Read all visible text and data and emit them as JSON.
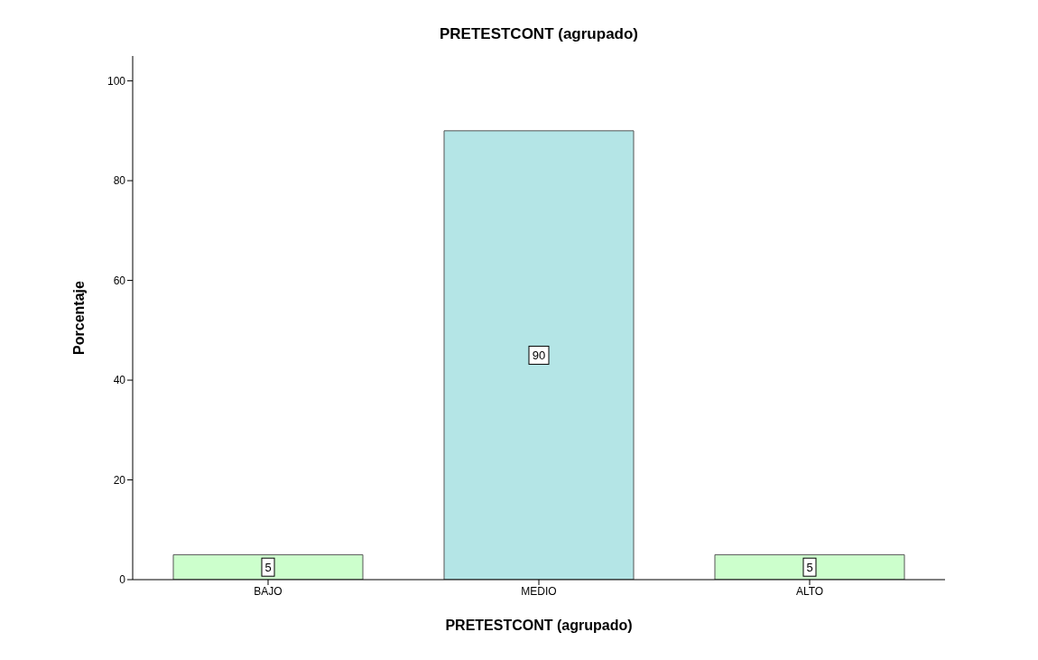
{
  "chart_data": {
    "type": "bar",
    "title": "PRETESTCONT (agrupado)",
    "xlabel": "PRETESTCONT (agrupado)",
    "ylabel": "Porcentaje",
    "categories": [
      "BAJO",
      "MEDIO",
      "ALTO"
    ],
    "values": [
      5,
      90,
      5
    ],
    "colors": [
      "#ccffcc",
      "#b4e5e6",
      "#ccffcc"
    ],
    "ylim": [
      0,
      105
    ],
    "yticks": [
      0,
      20,
      40,
      60,
      80,
      100
    ],
    "grid": false,
    "data_labels": true
  }
}
